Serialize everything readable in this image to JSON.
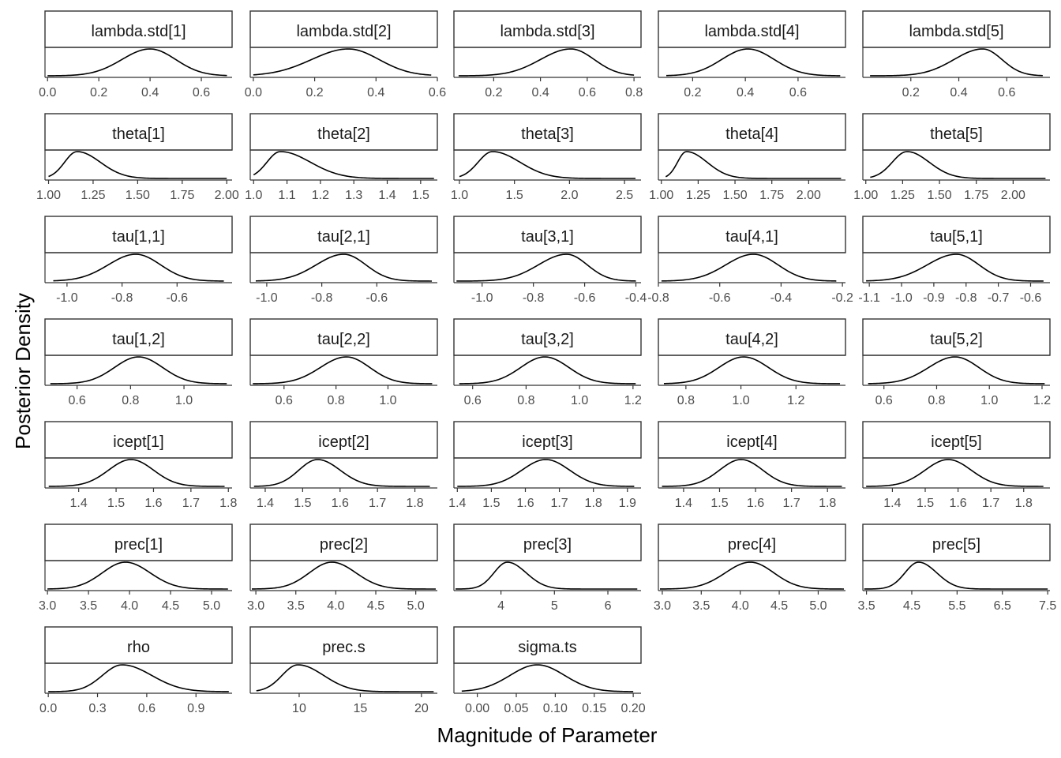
{
  "chart_data": {
    "type": "line",
    "subtype": "facetted density plot",
    "xlabel": "Magnitude of Parameter",
    "ylabel": "Posterior Density",
    "ncol": 5,
    "grid": false,
    "panels": [
      {
        "name": "lambda.std[1]",
        "xlim": [
          -0.01,
          0.72
        ],
        "ticks": [
          0.0,
          0.2,
          0.4,
          0.6
        ],
        "tick_labels": [
          "0.0",
          "0.2",
          "0.4",
          "0.6"
        ],
        "range": [
          0.0,
          0.7
        ],
        "mode": 0.4,
        "sd_left": 0.11,
        "sd_right": 0.1
      },
      {
        "name": "lambda.std[2]",
        "xlim": [
          -0.01,
          0.6
        ],
        "ticks": [
          0.0,
          0.2,
          0.4,
          0.6
        ],
        "tick_labels": [
          "0.0",
          "0.2",
          "0.4",
          "0.6"
        ],
        "range": [
          0.0,
          0.58
        ],
        "mode": 0.31,
        "sd_left": 0.12,
        "sd_right": 0.1
      },
      {
        "name": "lambda.std[3]",
        "xlim": [
          0.03,
          0.83
        ],
        "ticks": [
          0.2,
          0.4,
          0.6,
          0.8
        ],
        "tick_labels": [
          "0.2",
          "0.4",
          "0.6",
          "0.8"
        ],
        "range": [
          0.05,
          0.8
        ],
        "mode": 0.53,
        "sd_left": 0.13,
        "sd_right": 0.1
      },
      {
        "name": "lambda.std[4]",
        "xlim": [
          0.07,
          0.78
        ],
        "ticks": [
          0.2,
          0.4,
          0.6
        ],
        "tick_labels": [
          "0.2",
          "0.4",
          "0.6"
        ],
        "range": [
          0.1,
          0.76
        ],
        "mode": 0.41,
        "sd_left": 0.1,
        "sd_right": 0.1
      },
      {
        "name": "lambda.std[5]",
        "xlim": [
          0.0,
          0.78
        ],
        "ticks": [
          0.2,
          0.4,
          0.6
        ],
        "tick_labels": [
          "0.2",
          "0.4",
          "0.6"
        ],
        "range": [
          0.03,
          0.75
        ],
        "mode": 0.5,
        "sd_left": 0.12,
        "sd_right": 0.08
      },
      {
        "name": "theta[1]",
        "xlim": [
          0.98,
          2.03
        ],
        "ticks": [
          1.0,
          1.25,
          1.5,
          1.75,
          2.0
        ],
        "tick_labels": [
          "1.00",
          "1.25",
          "1.50",
          "1.75",
          "2.00"
        ],
        "range": [
          1.0,
          2.0
        ],
        "mode": 1.16,
        "sd_left": 0.07,
        "sd_right": 0.13
      },
      {
        "name": "theta[2]",
        "xlim": [
          0.99,
          1.55
        ],
        "ticks": [
          1.0,
          1.1,
          1.2,
          1.3,
          1.4,
          1.5
        ],
        "tick_labels": [
          "1.0",
          "1.1",
          "1.2",
          "1.3",
          "1.4",
          "1.5"
        ],
        "range": [
          1.0,
          1.54
        ],
        "mode": 1.08,
        "sd_left": 0.04,
        "sd_right": 0.09
      },
      {
        "name": "theta[3]",
        "xlim": [
          0.95,
          2.65
        ],
        "ticks": [
          1.0,
          1.5,
          2.0,
          2.5
        ],
        "tick_labels": [
          "1.0",
          "1.5",
          "2.0",
          "2.5"
        ],
        "range": [
          1.0,
          2.6
        ],
        "mode": 1.3,
        "sd_left": 0.13,
        "sd_right": 0.25
      },
      {
        "name": "theta[4]",
        "xlim": [
          0.98,
          2.25
        ],
        "ticks": [
          1.0,
          1.25,
          1.5,
          1.75,
          2.0
        ],
        "tick_labels": [
          "1.00",
          "1.25",
          "1.50",
          "1.75",
          "2.00"
        ],
        "range": [
          1.03,
          2.22
        ],
        "mode": 1.17,
        "sd_left": 0.06,
        "sd_right": 0.14
      },
      {
        "name": "theta[5]",
        "xlim": [
          0.98,
          2.25
        ],
        "ticks": [
          1.0,
          1.25,
          1.5,
          1.75,
          2.0
        ],
        "tick_labels": [
          "1.00",
          "1.25",
          "1.50",
          "1.75",
          "2.00"
        ],
        "range": [
          1.03,
          2.22
        ],
        "mode": 1.28,
        "sd_left": 0.1,
        "sd_right": 0.15
      },
      {
        "name": "tau[1,1]",
        "xlim": [
          -1.08,
          -0.4
        ],
        "ticks": [
          -1.0,
          -0.8,
          -0.6
        ],
        "tick_labels": [
          "-1.0",
          "-0.8",
          "-0.6"
        ],
        "range": [
          -1.05,
          -0.43
        ],
        "mode": -0.75,
        "sd_left": 0.1,
        "sd_right": 0.09
      },
      {
        "name": "tau[2,1]",
        "xlim": [
          -1.06,
          -0.38
        ],
        "ticks": [
          -1.0,
          -0.8,
          -0.6
        ],
        "tick_labels": [
          "-1.0",
          "-0.8",
          "-0.6"
        ],
        "range": [
          -1.04,
          -0.4
        ],
        "mode": -0.72,
        "sd_left": 0.1,
        "sd_right": 0.08
      },
      {
        "name": "tau[3,1]",
        "xlim": [
          -1.11,
          -0.38
        ],
        "ticks": [
          -1.0,
          -0.8,
          -0.6,
          -0.4
        ],
        "tick_labels": [
          "-1.0",
          "-0.8",
          "-0.6",
          "-0.4"
        ],
        "range": [
          -1.1,
          -0.4
        ],
        "mode": -0.67,
        "sd_left": 0.11,
        "sd_right": 0.08
      },
      {
        "name": "tau[4,1]",
        "xlim": [
          -0.8,
          -0.19
        ],
        "ticks": [
          -0.8,
          -0.6,
          -0.4,
          -0.2
        ],
        "tick_labels": [
          "-0.8",
          "-0.6",
          "-0.4",
          "-0.2"
        ],
        "range": [
          -0.79,
          -0.22
        ],
        "mode": -0.49,
        "sd_left": 0.09,
        "sd_right": 0.08
      },
      {
        "name": "tau[5,1]",
        "xlim": [
          -1.12,
          -0.54
        ],
        "ticks": [
          -1.1,
          -1.0,
          -0.9,
          -0.8,
          -0.7,
          -0.6
        ],
        "tick_labels": [
          "-1.1",
          "-1.0",
          "-0.9",
          "-0.8",
          "-0.7",
          "-0.6"
        ],
        "range": [
          -1.11,
          -0.56
        ],
        "mode": -0.83,
        "sd_left": 0.09,
        "sd_right": 0.07
      },
      {
        "name": "tau[1,2]",
        "xlim": [
          0.48,
          1.18
        ],
        "ticks": [
          0.6,
          0.8,
          1.0
        ],
        "tick_labels": [
          "0.6",
          "0.8",
          "1.0"
        ],
        "range": [
          0.5,
          1.16
        ],
        "mode": 0.83,
        "sd_left": 0.09,
        "sd_right": 0.09
      },
      {
        "name": "tau[2,2]",
        "xlim": [
          0.47,
          1.19
        ],
        "ticks": [
          0.6,
          0.8,
          1.0
        ],
        "tick_labels": [
          "0.6",
          "0.8",
          "1.0"
        ],
        "range": [
          0.48,
          1.17
        ],
        "mode": 0.84,
        "sd_left": 0.1,
        "sd_right": 0.09
      },
      {
        "name": "tau[3,2]",
        "xlim": [
          0.53,
          1.23
        ],
        "ticks": [
          0.6,
          0.8,
          1.0,
          1.2
        ],
        "tick_labels": [
          "0.6",
          "0.8",
          "1.0",
          "1.2"
        ],
        "range": [
          0.55,
          1.21
        ],
        "mode": 0.87,
        "sd_left": 0.09,
        "sd_right": 0.09
      },
      {
        "name": "tau[4,2]",
        "xlim": [
          0.7,
          1.38
        ],
        "ticks": [
          0.8,
          1.0,
          1.2
        ],
        "tick_labels": [
          "0.8",
          "1.0",
          "1.2"
        ],
        "range": [
          0.72,
          1.36
        ],
        "mode": 1.01,
        "sd_left": 0.09,
        "sd_right": 0.09
      },
      {
        "name": "tau[5,2]",
        "xlim": [
          0.52,
          1.23
        ],
        "ticks": [
          0.6,
          0.8,
          1.0,
          1.2
        ],
        "tick_labels": [
          "0.6",
          "0.8",
          "1.0",
          "1.2"
        ],
        "range": [
          0.54,
          1.21
        ],
        "mode": 0.87,
        "sd_left": 0.1,
        "sd_right": 0.09
      },
      {
        "name": "icept[1]",
        "xlim": [
          1.31,
          1.81
        ],
        "ticks": [
          1.4,
          1.5,
          1.6,
          1.7,
          1.8
        ],
        "tick_labels": [
          "1.4",
          "1.5",
          "1.6",
          "1.7",
          "1.8"
        ],
        "range": [
          1.32,
          1.79
        ],
        "mode": 1.54,
        "sd_left": 0.06,
        "sd_right": 0.06
      },
      {
        "name": "icept[2]",
        "xlim": [
          1.36,
          1.86
        ],
        "ticks": [
          1.4,
          1.5,
          1.6,
          1.7,
          1.8
        ],
        "tick_labels": [
          "1.4",
          "1.5",
          "1.6",
          "1.7",
          "1.8"
        ],
        "range": [
          1.37,
          1.84
        ],
        "mode": 1.54,
        "sd_left": 0.05,
        "sd_right": 0.06
      },
      {
        "name": "icept[3]",
        "xlim": [
          1.39,
          1.94
        ],
        "ticks": [
          1.4,
          1.5,
          1.6,
          1.7,
          1.8,
          1.9
        ],
        "tick_labels": [
          "1.4",
          "1.5",
          "1.6",
          "1.7",
          "1.8",
          "1.9"
        ],
        "range": [
          1.4,
          1.92
        ],
        "mode": 1.66,
        "sd_left": 0.07,
        "sd_right": 0.07
      },
      {
        "name": "icept[4]",
        "xlim": [
          1.33,
          1.85
        ],
        "ticks": [
          1.4,
          1.5,
          1.6,
          1.7,
          1.8
        ],
        "tick_labels": [
          "1.4",
          "1.5",
          "1.6",
          "1.7",
          "1.8"
        ],
        "range": [
          1.34,
          1.84
        ],
        "mode": 1.56,
        "sd_left": 0.06,
        "sd_right": 0.06
      },
      {
        "name": "icept[5]",
        "xlim": [
          1.31,
          1.88
        ],
        "ticks": [
          1.4,
          1.5,
          1.6,
          1.7,
          1.8
        ],
        "tick_labels": [
          "1.4",
          "1.5",
          "1.6",
          "1.7",
          "1.8"
        ],
        "range": [
          1.32,
          1.86
        ],
        "mode": 1.57,
        "sd_left": 0.07,
        "sd_right": 0.07
      },
      {
        "name": "prec[1]",
        "xlim": [
          2.97,
          5.25
        ],
        "ticks": [
          3.0,
          3.5,
          4.0,
          4.5,
          5.0
        ],
        "tick_labels": [
          "3.0",
          "3.5",
          "4.0",
          "4.5",
          "5.0"
        ],
        "range": [
          3.0,
          5.2
        ],
        "mode": 3.95,
        "sd_left": 0.28,
        "sd_right": 0.3
      },
      {
        "name": "prec[2]",
        "xlim": [
          2.93,
          5.27
        ],
        "ticks": [
          3.0,
          3.5,
          4.0,
          4.5,
          5.0
        ],
        "tick_labels": [
          "3.0",
          "3.5",
          "4.0",
          "4.5",
          "5.0"
        ],
        "range": [
          2.95,
          5.25
        ],
        "mode": 3.95,
        "sd_left": 0.28,
        "sd_right": 0.3
      },
      {
        "name": "prec[3]",
        "xlim": [
          3.12,
          6.62
        ],
        "ticks": [
          4,
          5,
          6
        ],
        "tick_labels": [
          "4",
          "5",
          "6"
        ],
        "range": [
          3.15,
          6.55
        ],
        "mode": 4.12,
        "sd_left": 0.25,
        "sd_right": 0.35
      },
      {
        "name": "prec[4]",
        "xlim": [
          2.95,
          5.35
        ],
        "ticks": [
          3.0,
          3.5,
          4.0,
          4.5,
          5.0
        ],
        "tick_labels": [
          "3.0",
          "3.5",
          "4.0",
          "4.5",
          "5.0"
        ],
        "range": [
          2.97,
          5.33
        ],
        "mode": 4.13,
        "sd_left": 0.32,
        "sd_right": 0.3
      },
      {
        "name": "prec[5]",
        "xlim": [
          3.42,
          7.55
        ],
        "ticks": [
          3.5,
          4.5,
          5.5,
          6.5,
          7.5
        ],
        "tick_labels": [
          "3.5",
          "4.5",
          "5.5",
          "6.5",
          "7.5"
        ],
        "range": [
          3.45,
          7.5
        ],
        "mode": 4.65,
        "sd_left": 0.3,
        "sd_right": 0.4
      },
      {
        "name": "rho",
        "xlim": [
          -0.02,
          1.12
        ],
        "ticks": [
          0.0,
          0.3,
          0.6,
          0.9
        ],
        "tick_labels": [
          "0.0",
          "0.3",
          "0.6",
          "0.9"
        ],
        "range": [
          0.0,
          1.1
        ],
        "mode": 0.45,
        "sd_left": 0.12,
        "sd_right": 0.18
      },
      {
        "name": "prec.s",
        "xlim": [
          6.0,
          21.3
        ],
        "ticks": [
          10,
          15,
          20
        ],
        "tick_labels": [
          "10",
          "15",
          "20"
        ],
        "range": [
          6.5,
          21.0
        ],
        "mode": 9.9,
        "sd_left": 1.3,
        "sd_right": 2.1
      },
      {
        "name": "sigma.ts",
        "xlim": [
          -0.03,
          0.21
        ],
        "ticks": [
          0.0,
          0.05,
          0.1,
          0.15,
          0.2
        ],
        "tick_labels": [
          "0.00",
          "0.05",
          "0.10",
          "0.15",
          "0.20"
        ],
        "range": [
          -0.02,
          0.2
        ],
        "mode": 0.077,
        "sd_left": 0.035,
        "sd_right": 0.035
      }
    ]
  }
}
